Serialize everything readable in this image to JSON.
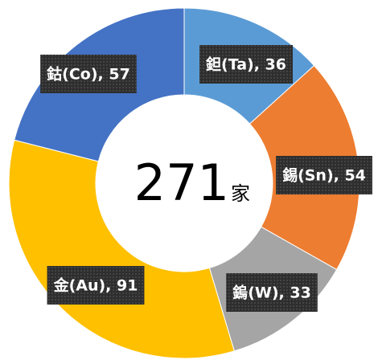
{
  "chart_data": {
    "type": "donut",
    "values": [
      36,
      54,
      33,
      91,
      57
    ],
    "value_labels": [
      "鉭(Ta), 36",
      "錫(Sn), 54",
      "鎢(W), 33",
      "金(Au), 91",
      "鈷(Co), 57"
    ],
    "colors": [
      "#5b9bd5",
      "#ed7d31",
      "#a5a5a5",
      "#ffc000",
      "#4472c4"
    ],
    "center_value": 271,
    "center_unit": "家"
  }
}
